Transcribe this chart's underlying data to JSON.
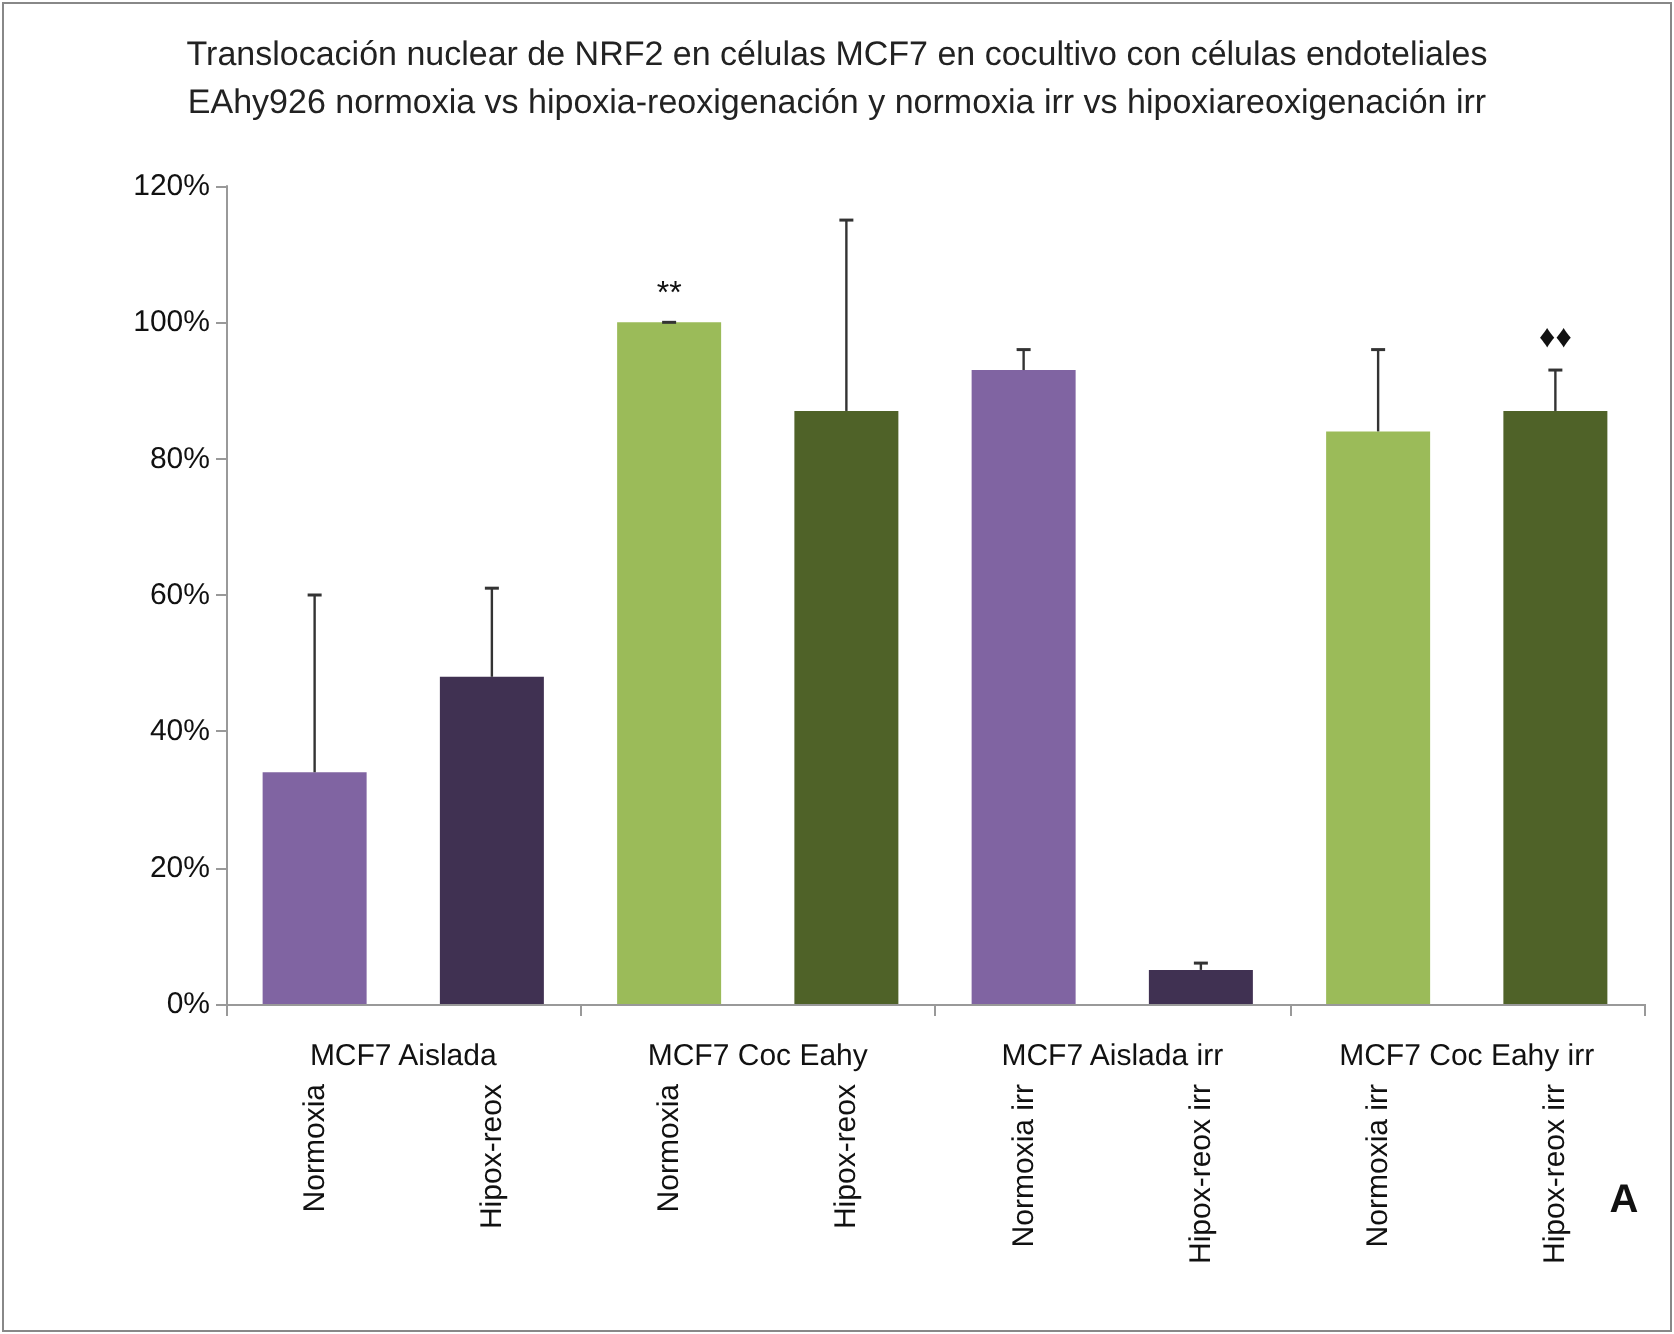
{
  "chart_data": {
    "type": "bar",
    "title": "Translocación nuclear de NRF2 en células MCF7 en cocultivo con células endoteliales\nEAhy926 normoxia vs hipoxia-reoxigenación y normoxia irr vs hipoxiareoxigenación irr",
    "categories": [
      "Normoxia",
      "Hipox-reox",
      "Normoxia",
      "Hipox-reox",
      "Normoxia irr",
      "Hipox-reox irr",
      "Normoxia irr",
      "Hipox-reox irr"
    ],
    "values": [
      34,
      48,
      100,
      87,
      93,
      5,
      84,
      87
    ],
    "colors": [
      "#8064a2",
      "#403152",
      "#9bbb59",
      "#4f6228",
      "#8064a2",
      "#403152",
      "#9bbb59",
      "#4f6228"
    ],
    "errors": [
      [
        34,
        60
      ],
      [
        48,
        61
      ],
      [
        100,
        100
      ],
      [
        87,
        115
      ],
      [
        93,
        96
      ],
      [
        5,
        6
      ],
      [
        84,
        96
      ],
      [
        87,
        93
      ]
    ],
    "ylim": [
      0,
      120
    ],
    "yticks": [
      {
        "value": 0,
        "label": "0%"
      },
      {
        "value": 20,
        "label": "20%"
      },
      {
        "value": 40,
        "label": "40%"
      },
      {
        "value": 60,
        "label": "60%"
      },
      {
        "value": 80,
        "label": "80%"
      },
      {
        "value": 100,
        "label": "100%"
      },
      {
        "value": 120,
        "label": "120%"
      }
    ],
    "annotations": [
      "MCF7 Aislada",
      "MCF7 Coc Eahy",
      "MCF7 Aislada irr",
      "MCF7 Coc Eahy irr",
      "**",
      "♦♦",
      "A"
    ],
    "grid": false
  }
}
